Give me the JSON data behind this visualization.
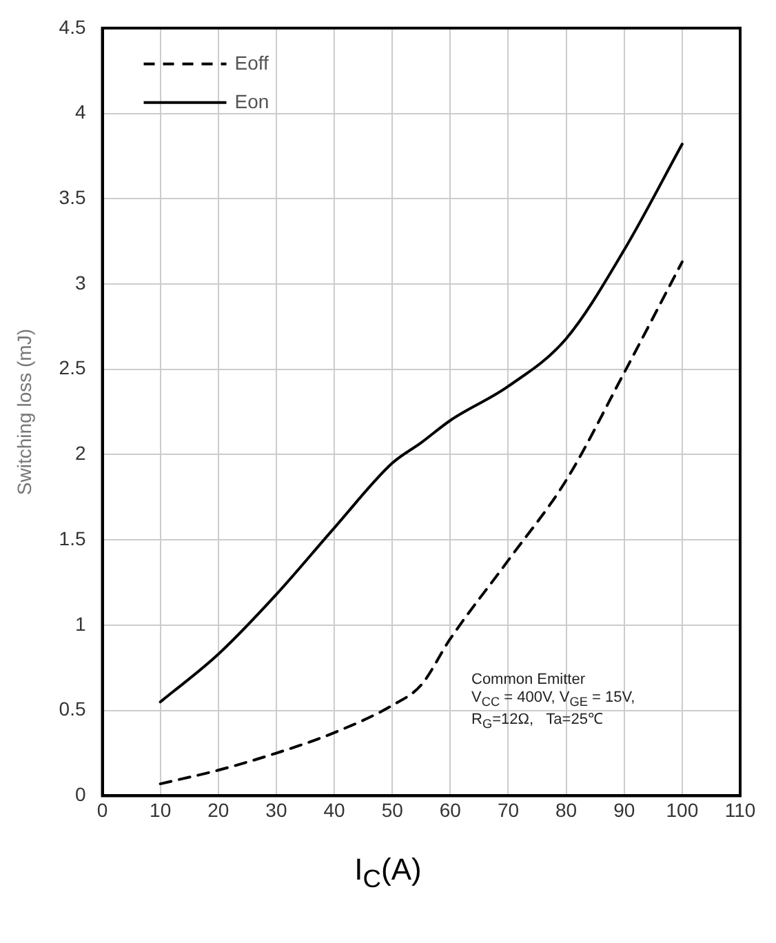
{
  "chart_data": {
    "type": "line",
    "xlabel": "I$_{C}$(A)",
    "ylabel": "Switching loss (mJ)",
    "annotations": [
      "Common Emitter\nV$_{CC}$ = 400V, V$_{GE}$ = 15V,\nR$_{G}$=12Ω,   Ta=25℃"
    ],
    "x": [
      10,
      20,
      30,
      40,
      50,
      55,
      60,
      70,
      80,
      90,
      100
    ],
    "series": [
      {
        "name": "Eoff",
        "color": "#000000",
        "line_style": "dashed",
        "values": [
          0.07,
          0.15,
          0.25,
          0.37,
          0.53,
          0.65,
          0.92,
          1.38,
          1.85,
          2.48,
          3.13
        ]
      },
      {
        "name": "Eon",
        "color": "#000000",
        "line_style": "solid",
        "values": [
          0.55,
          0.83,
          1.18,
          1.57,
          1.95,
          2.07,
          2.2,
          2.4,
          2.68,
          3.2,
          3.82
        ]
      }
    ],
    "xlim": [
      0,
      110
    ],
    "xticks": [
      0,
      10,
      20,
      30,
      40,
      50,
      60,
      70,
      80,
      90,
      100,
      110
    ],
    "ylim": [
      0,
      4.5
    ],
    "yticks": [
      0,
      0.5,
      1,
      1.5,
      2,
      2.5,
      3,
      3.5,
      4,
      4.5
    ],
    "grid": true,
    "legend": "top left",
    "marker": "none"
  }
}
